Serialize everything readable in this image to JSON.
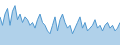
{
  "chart_data": {
    "type": "area",
    "values": [
      20,
      14,
      22,
      26,
      14,
      24,
      28,
      18,
      22,
      16,
      20,
      18,
      14,
      16,
      12,
      18,
      22,
      16,
      14,
      10,
      8,
      14,
      20,
      10,
      18,
      22,
      16,
      12,
      14,
      8,
      12,
      16,
      20,
      12,
      16,
      10,
      12,
      14,
      18,
      12,
      14,
      10,
      14,
      16,
      12,
      14,
      10,
      12,
      16
    ],
    "color": "#4f98d0",
    "ylim": [
      0,
      32
    ],
    "tick_labels": false,
    "grid": false
  }
}
